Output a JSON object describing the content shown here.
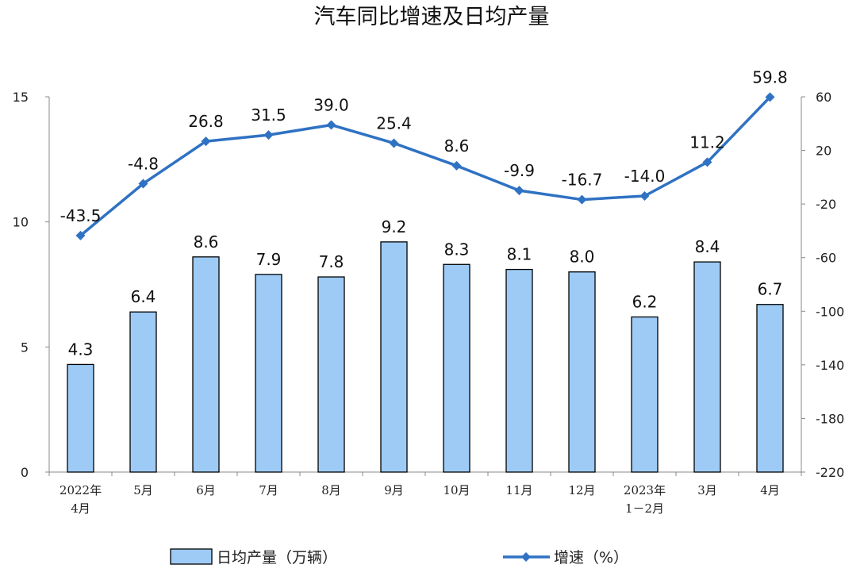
{
  "chart_data": {
    "type": "bar+line",
    "title": "汽车同比增速及日均产量",
    "categories": [
      [
        "2022年",
        "4月"
      ],
      [
        "5月"
      ],
      [
        "6月"
      ],
      [
        "7月"
      ],
      [
        "8月"
      ],
      [
        "9月"
      ],
      [
        "10月"
      ],
      [
        "11月"
      ],
      [
        "12月"
      ],
      [
        "2023年",
        "1－2月"
      ],
      [
        "3月"
      ],
      [
        "4月"
      ]
    ],
    "series": [
      {
        "name": "日均产量（万辆）",
        "type": "bar",
        "axis": "left",
        "values": [
          4.3,
          6.4,
          8.6,
          7.9,
          7.8,
          9.2,
          8.3,
          8.1,
          8.0,
          6.2,
          8.4,
          6.7
        ],
        "labels": [
          "4.3",
          "6.4",
          "8.6",
          "7.9",
          "7.8",
          "9.2",
          "8.3",
          "8.1",
          "8.0",
          "6.2",
          "8.4",
          "6.7"
        ]
      },
      {
        "name": "增速（%）",
        "type": "line",
        "axis": "right",
        "values": [
          -43.5,
          -4.8,
          26.8,
          31.5,
          39.0,
          25.4,
          8.6,
          -9.9,
          -16.7,
          -14.0,
          11.2,
          59.8
        ],
        "labels": [
          "-43.5",
          "-4.8",
          "26.8",
          "31.5",
          "39.0",
          "25.4",
          "8.6",
          "-9.9",
          "-16.7",
          "-14.0",
          "11.2",
          "59.8"
        ]
      }
    ],
    "y_left": {
      "range": [
        0,
        15
      ],
      "ticks": [
        "0",
        "5",
        "10",
        "15"
      ]
    },
    "y_right": {
      "range": [
        -220,
        60
      ],
      "ticks": [
        "-220",
        "-180",
        "-140",
        "-100",
        "-60",
        "-20",
        "20",
        "60"
      ]
    },
    "grid": false,
    "legend_position": "bottom",
    "colors": {
      "bar_fill": "#9dcbf5",
      "bar_stroke": "#000000",
      "line": "#2f72c3",
      "axis": "#888888"
    }
  }
}
